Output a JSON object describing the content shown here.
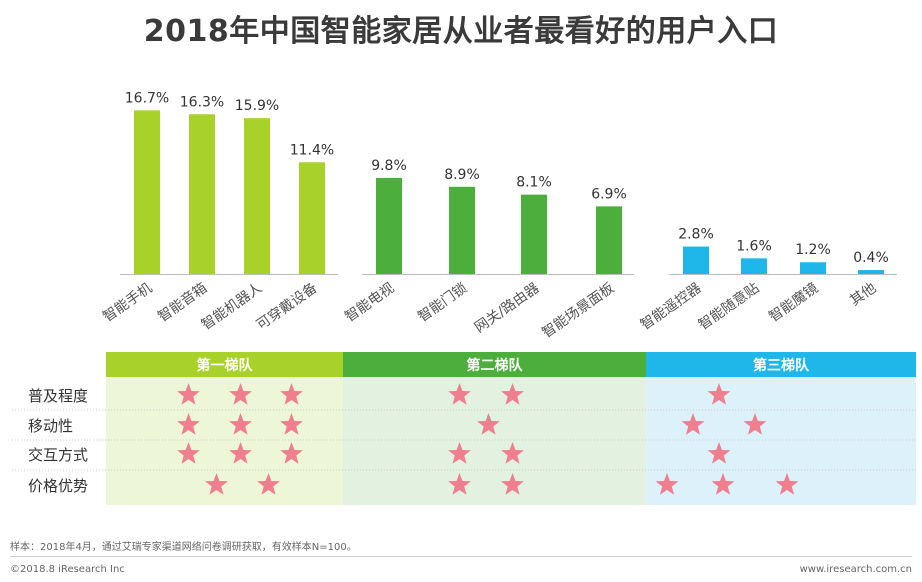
{
  "title": "2018年中国智能家居从业者最看好的用户入口",
  "colors": {
    "tier1": "#a8d12a",
    "tier2": "#4caf3c",
    "tier3": "#1fb6e9",
    "tier1_bg": "#eef6d8",
    "tier2_bg": "#e3f1e0",
    "tier3_bg": "#ddf1fa",
    "star": "#ef7f8e"
  },
  "chart_data": {
    "type": "bar",
    "unit": "%",
    "categories": [
      "智能手机",
      "智能音箱",
      "智能机器人",
      "可穿戴设备",
      "智能电视",
      "智能门锁",
      "网关/路由器",
      "智能场景面板",
      "智能遥控器",
      "智能随意贴",
      "智能魔镜",
      "其他"
    ],
    "values": [
      16.7,
      16.3,
      15.9,
      11.4,
      9.8,
      8.9,
      8.1,
      6.9,
      2.8,
      1.6,
      1.2,
      0.4
    ],
    "value_labels": [
      "16.7%",
      "16.3%",
      "15.9%",
      "11.4%",
      "9.8%",
      "8.9%",
      "8.1%",
      "6.9%",
      "2.8%",
      "1.6%",
      "1.2%",
      "0.4%"
    ],
    "groups": [
      {
        "name": "第一梯队",
        "categories": [
          "智能手机",
          "智能音箱",
          "智能机器人",
          "可穿戴设备"
        ]
      },
      {
        "name": "第二梯队",
        "categories": [
          "智能电视",
          "智能门锁",
          "网关/路由器",
          "智能场景面板"
        ]
      },
      {
        "name": "第三梯队",
        "categories": [
          "智能遥控器",
          "智能随意贴",
          "智能魔镜",
          "其他"
        ]
      }
    ]
  },
  "tier_table": {
    "tiers": [
      "第一梯队",
      "第二梯队",
      "第三梯队"
    ],
    "rows": [
      {
        "label": "普及程度",
        "stars": [
          3,
          2,
          1
        ]
      },
      {
        "label": "移动性",
        "stars": [
          3,
          1,
          2
        ]
      },
      {
        "label": "交互方式",
        "stars": [
          3,
          2,
          1
        ]
      },
      {
        "label": "价格优势",
        "stars": [
          2,
          2,
          3
        ]
      }
    ]
  },
  "footnote": "样本：2018年4月，通过艾瑞专家渠道网络问卷调研获取，有效样本N=100。",
  "copyright": "©2018.8 iResearch Inc",
  "website": "www.iresearch.com.cn"
}
